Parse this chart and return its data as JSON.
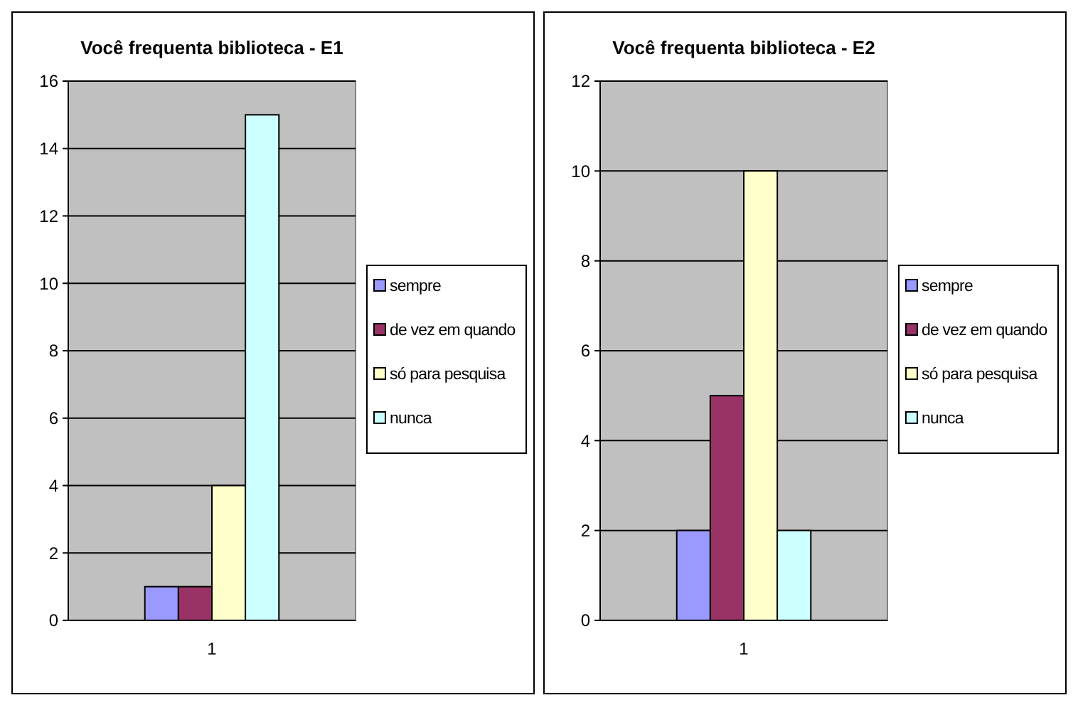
{
  "chart_data": [
    {
      "type": "bar",
      "title": "Você frequenta biblioteca - E1",
      "categories": [
        "1"
      ],
      "ylim": [
        0,
        16
      ],
      "yticks": [
        0,
        2,
        4,
        6,
        8,
        10,
        12,
        14,
        16
      ],
      "grid": "y",
      "legend": "right",
      "series": [
        {
          "name": "sempre",
          "color": "#9999ff",
          "values": [
            1
          ]
        },
        {
          "name": "de vez em quando",
          "color": "#993366",
          "values": [
            1
          ]
        },
        {
          "name": "só para pesquisa",
          "color": "#ffffcc",
          "values": [
            4
          ]
        },
        {
          "name": "nunca",
          "color": "#ccffff",
          "values": [
            15
          ]
        }
      ]
    },
    {
      "type": "bar",
      "title": "Você frequenta biblioteca - E2",
      "categories": [
        "1"
      ],
      "ylim": [
        0,
        12
      ],
      "yticks": [
        0,
        2,
        4,
        6,
        8,
        10,
        12
      ],
      "grid": "y",
      "legend": "right",
      "series": [
        {
          "name": "sempre",
          "color": "#9999ff",
          "values": [
            2
          ]
        },
        {
          "name": "de vez em quando",
          "color": "#993366",
          "values": [
            5
          ]
        },
        {
          "name": "só para pesquisa",
          "color": "#ffffcc",
          "values": [
            10
          ]
        },
        {
          "name": "nunca",
          "color": "#ccffff",
          "values": [
            2
          ]
        }
      ]
    }
  ]
}
